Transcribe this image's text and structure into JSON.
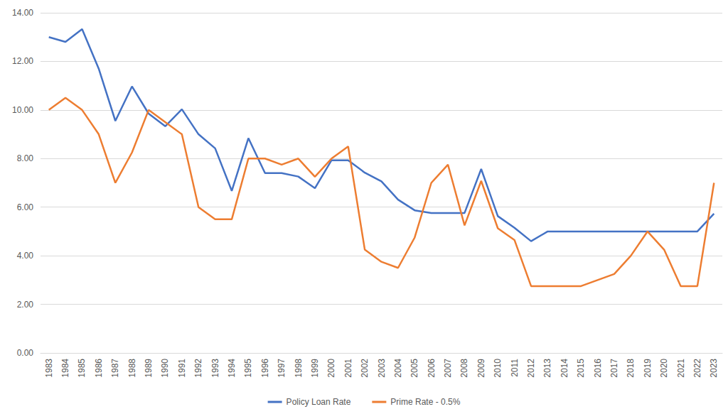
{
  "chart_data": {
    "type": "line",
    "categories": [
      "1983",
      "1984",
      "1985",
      "1986",
      "1987",
      "1988",
      "1989",
      "1990",
      "1991",
      "1992",
      "1993",
      "1994",
      "1995",
      "1996",
      "1997",
      "1998",
      "1999",
      "2000",
      "2001",
      "2002",
      "2003",
      "2004",
      "2005",
      "2006",
      "2007",
      "2008",
      "2009",
      "2010",
      "2011",
      "2012",
      "2013",
      "2014",
      "2015",
      "2016",
      "2017",
      "2018",
      "2019",
      "2020",
      "2021",
      "2022",
      "2023"
    ],
    "series": [
      {
        "name": "Policy Loan Rate",
        "color": "#4472c4",
        "values": [
          13.0,
          12.8,
          13.33,
          11.7,
          9.55,
          10.97,
          9.85,
          9.33,
          10.03,
          9.0,
          8.42,
          6.67,
          8.84,
          7.4,
          7.4,
          7.26,
          6.78,
          7.93,
          7.93,
          7.42,
          7.06,
          6.31,
          5.87,
          5.76,
          5.76,
          5.76,
          7.57,
          5.63,
          5.15,
          4.6,
          5.0,
          5.0,
          5.0,
          5.0,
          5.0,
          5.0,
          5.0,
          5.0,
          5.0,
          5.0,
          5.73
        ]
      },
      {
        "name": "Prime Rate - 0.5%",
        "color": "#ed7d31",
        "values": [
          10.0,
          10.5,
          10.0,
          9.0,
          7.0,
          8.25,
          10.0,
          9.5,
          9.0,
          6.0,
          5.5,
          5.5,
          8.0,
          8.0,
          7.75,
          8.0,
          7.25,
          8.0,
          8.5,
          4.25,
          3.75,
          3.5,
          4.75,
          7.0,
          7.75,
          5.25,
          7.08,
          5.13,
          4.65,
          2.75,
          2.75,
          2.75,
          2.75,
          3.0,
          3.25,
          4.0,
          5.0,
          4.25,
          2.75,
          2.75,
          7.0
        ]
      }
    ],
    "ylim": [
      0,
      14
    ],
    "yticks": [
      {
        "value": 0,
        "label": "0.00"
      },
      {
        "value": 2,
        "label": "2.00"
      },
      {
        "value": 4,
        "label": "4.00"
      },
      {
        "value": 6,
        "label": "6.00"
      },
      {
        "value": 8,
        "label": "8.00"
      },
      {
        "value": 10,
        "label": "10.00"
      },
      {
        "value": 12,
        "label": "12.00"
      },
      {
        "value": 14,
        "label": "14.00"
      }
    ],
    "grid": true,
    "legend": "bottom"
  }
}
